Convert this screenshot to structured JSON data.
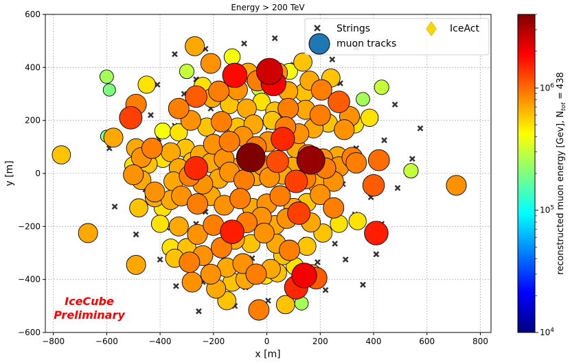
{
  "chart_data": {
    "type": "scatter",
    "title": "Energy > 200 TeV",
    "xlabel": "x [m]",
    "ylabel": "y [m]",
    "xlim": [
      -830,
      840
    ],
    "ylim": [
      -600,
      600
    ],
    "xticks": [
      -800,
      -600,
      -400,
      -200,
      0,
      200,
      400,
      600,
      800
    ],
    "yticks": [
      -600,
      -400,
      -200,
      0,
      200,
      400,
      600
    ],
    "grid": true,
    "legend": {
      "placement": "top-right",
      "entries": [
        {
          "name": "Strings",
          "marker": "x",
          "color": "#333333"
        },
        {
          "name": "muon tracks",
          "marker": "circle",
          "color": "#1f77b4"
        },
        {
          "name": "IceAct",
          "marker": "diamond",
          "color": "#ffd700"
        }
      ]
    },
    "colorbar": {
      "label": "reconstructed muon energy [Gev], N",
      "label_sub": "tot",
      "label_suffix": " = 438",
      "scale": "log",
      "range": [
        10000,
        4000000
      ],
      "tick_bases": [
        "10",
        "10",
        "10"
      ],
      "tick_exps": [
        "4",
        "5",
        "6"
      ],
      "tick_values": [
        10000,
        100000,
        1000000
      ]
    },
    "annotation": {
      "line1": "IceCube",
      "line2": "Preliminary",
      "color": "#ff0000"
    },
    "strings": [
      [
        -440,
        350
      ],
      [
        -345,
        450
      ],
      [
        -265,
        355
      ],
      [
        -230,
        470
      ],
      [
        -85,
        490
      ],
      [
        30,
        510
      ],
      [
        100,
        410
      ],
      [
        245,
        430
      ],
      [
        335,
        475
      ],
      [
        -410,
        335
      ],
      [
        -310,
        300
      ],
      [
        -210,
        245
      ],
      [
        -90,
        340
      ],
      [
        -30,
        310
      ],
      [
        60,
        260
      ],
      [
        160,
        295
      ],
      [
        275,
        340
      ],
      [
        360,
        195
      ],
      [
        -435,
        220
      ],
      [
        -345,
        180
      ],
      [
        -155,
        170
      ],
      [
        5,
        175
      ],
      [
        185,
        185
      ],
      [
        290,
        250
      ],
      [
        480,
        260
      ],
      [
        575,
        170
      ],
      [
        -590,
        95
      ],
      [
        -490,
        65
      ],
      [
        -405,
        130
      ],
      [
        -300,
        120
      ],
      [
        -185,
        100
      ],
      [
        -80,
        80
      ],
      [
        15,
        40
      ],
      [
        110,
        80
      ],
      [
        225,
        20
      ],
      [
        335,
        95
      ],
      [
        440,
        125
      ],
      [
        545,
        55
      ],
      [
        -520,
        -20
      ],
      [
        -455,
        -60
      ],
      [
        -330,
        -30
      ],
      [
        -225,
        -35
      ],
      [
        -95,
        -10
      ],
      [
        170,
        -30
      ],
      [
        285,
        -40
      ],
      [
        390,
        -90
      ],
      [
        490,
        -55
      ],
      [
        -570,
        -125
      ],
      [
        -440,
        -110
      ],
      [
        -345,
        -110
      ],
      [
        -230,
        -145
      ],
      [
        -40,
        -140
      ],
      [
        60,
        -110
      ],
      [
        150,
        -115
      ],
      [
        330,
        -155
      ],
      [
        430,
        -190
      ],
      [
        -490,
        -230
      ],
      [
        -375,
        -205
      ],
      [
        -265,
        -190
      ],
      [
        -150,
        -230
      ],
      [
        -60,
        -250
      ],
      [
        45,
        -240
      ],
      [
        145,
        -250
      ],
      [
        255,
        -265
      ],
      [
        390,
        -200
      ],
      [
        -400,
        -325
      ],
      [
        -300,
        -320
      ],
      [
        -160,
        -330
      ],
      [
        -55,
        -320
      ],
      [
        40,
        -360
      ],
      [
        190,
        -335
      ],
      [
        295,
        -325
      ],
      [
        410,
        -305
      ],
      [
        -340,
        -425
      ],
      [
        -240,
        -410
      ],
      [
        -130,
        -395
      ],
      [
        -80,
        -430
      ],
      [
        135,
        -415
      ],
      [
        220,
        -440
      ],
      [
        360,
        -420
      ],
      [
        -255,
        -520
      ],
      [
        -120,
        -500
      ],
      [
        5,
        -480
      ]
    ],
    "muon_tracks": [
      [
        -130,
        440,
        400000
      ],
      [
        -270,
        480,
        700000
      ],
      [
        -210,
        415,
        800000
      ],
      [
        -120,
        370,
        1800000
      ],
      [
        -70,
        380,
        700000
      ],
      [
        -35,
        350,
        900000
      ],
      [
        10,
        385,
        2500000
      ],
      [
        40,
        380,
        800000
      ],
      [
        85,
        385,
        400000
      ],
      [
        135,
        420,
        600000
      ],
      [
        160,
        350,
        700000
      ],
      [
        240,
        360,
        600000
      ],
      [
        -600,
        365,
        250000
      ],
      [
        -590,
        315,
        200000
      ],
      [
        -450,
        335,
        500000
      ],
      [
        -300,
        385,
        300000
      ],
      [
        -240,
        330,
        500000
      ],
      [
        -180,
        310,
        900000
      ],
      [
        -110,
        315,
        800000
      ],
      [
        -30,
        320,
        300000
      ],
      [
        25,
        340,
        2000000
      ],
      [
        80,
        310,
        700000
      ],
      [
        140,
        305,
        600000
      ],
      [
        205,
        315,
        900000
      ],
      [
        360,
        280,
        250000
      ],
      [
        430,
        325,
        300000
      ],
      [
        -510,
        210,
        1300000
      ],
      [
        -490,
        260,
        900000
      ],
      [
        -330,
        245,
        900000
      ],
      [
        -265,
        290,
        1100000
      ],
      [
        -205,
        285,
        700000
      ],
      [
        -140,
        260,
        600000
      ],
      [
        -75,
        245,
        700000
      ],
      [
        -20,
        270,
        500000
      ],
      [
        30,
        235,
        600000
      ],
      [
        80,
        245,
        900000
      ],
      [
        145,
        240,
        700000
      ],
      [
        200,
        220,
        900000
      ],
      [
        270,
        270,
        1100000
      ],
      [
        310,
        215,
        800000
      ],
      [
        330,
        185,
        500000
      ],
      [
        385,
        210,
        500000
      ],
      [
        -390,
        160,
        400000
      ],
      [
        -330,
        155,
        500000
      ],
      [
        -285,
        200,
        800000
      ],
      [
        -225,
        175,
        600000
      ],
      [
        -170,
        195,
        900000
      ],
      [
        -110,
        175,
        600000
      ],
      [
        -50,
        185,
        700000
      ],
      [
        20,
        200,
        600000
      ],
      [
        70,
        175,
        900000
      ],
      [
        120,
        150,
        800000
      ],
      [
        175,
        170,
        700000
      ],
      [
        230,
        190,
        600000
      ],
      [
        290,
        165,
        800000
      ],
      [
        -770,
        70,
        600000
      ],
      [
        -600,
        140,
        200000
      ],
      [
        -575,
        135,
        700000
      ],
      [
        -490,
        95,
        700000
      ],
      [
        -470,
        60,
        800000
      ],
      [
        -430,
        95,
        900000
      ],
      [
        -360,
        80,
        700000
      ],
      [
        -305,
        95,
        600000
      ],
      [
        -250,
        70,
        700000
      ],
      [
        -200,
        110,
        800000
      ],
      [
        -140,
        120,
        900000
      ],
      [
        -90,
        140,
        800000
      ],
      [
        -40,
        100,
        900000
      ],
      [
        5,
        120,
        800000
      ],
      [
        60,
        130,
        1500000
      ],
      [
        110,
        95,
        700000
      ],
      [
        155,
        70,
        900000
      ],
      [
        210,
        55,
        800000
      ],
      [
        265,
        65,
        700000
      ],
      [
        320,
        60,
        900000
      ],
      [
        335,
        40,
        900000
      ],
      [
        420,
        50,
        1000000
      ],
      [
        540,
        10,
        300000
      ],
      [
        -500,
        30,
        500000
      ],
      [
        -445,
        35,
        600000
      ],
      [
        -390,
        55,
        500000
      ],
      [
        -330,
        20,
        700000
      ],
      [
        -280,
        45,
        600000
      ],
      [
        -265,
        20,
        1500000
      ],
      [
        -210,
        40,
        700000
      ],
      [
        -160,
        55,
        800000
      ],
      [
        -120,
        20,
        700000
      ],
      [
        -60,
        60,
        4000000
      ],
      [
        -15,
        30,
        800000
      ],
      [
        40,
        45,
        1200000
      ],
      [
        95,
        25,
        700000
      ],
      [
        165,
        50,
        3500000
      ],
      [
        220,
        20,
        900000
      ],
      [
        270,
        25,
        800000
      ],
      [
        -500,
        -5,
        800000
      ],
      [
        -470,
        -25,
        700000
      ],
      [
        -420,
        -70,
        800000
      ],
      [
        -350,
        -30,
        700000
      ],
      [
        -290,
        -10,
        900000
      ],
      [
        -240,
        -40,
        800000
      ],
      [
        -180,
        -20,
        700000
      ],
      [
        -140,
        5,
        800000
      ],
      [
        -85,
        -25,
        900000
      ],
      [
        -40,
        -10,
        700000
      ],
      [
        10,
        -15,
        800000
      ],
      [
        60,
        -5,
        700000
      ],
      [
        110,
        -30,
        1300000
      ],
      [
        145,
        -20,
        900000
      ],
      [
        190,
        -40,
        700000
      ],
      [
        250,
        -30,
        800000
      ],
      [
        400,
        -45,
        1100000
      ],
      [
        710,
        -45,
        800000
      ],
      [
        -480,
        -130,
        600000
      ],
      [
        -420,
        -90,
        700000
      ],
      [
        -390,
        -130,
        500000
      ],
      [
        -360,
        -100,
        700000
      ],
      [
        -320,
        -85,
        800000
      ],
      [
        -260,
        -115,
        900000
      ],
      [
        -210,
        -85,
        700000
      ],
      [
        -160,
        -120,
        800000
      ],
      [
        -100,
        -95,
        900000
      ],
      [
        -55,
        -130,
        700000
      ],
      [
        0,
        -115,
        800000
      ],
      [
        50,
        -85,
        900000
      ],
      [
        100,
        -130,
        700000
      ],
      [
        150,
        -110,
        600000
      ],
      [
        200,
        -80,
        800000
      ],
      [
        250,
        -130,
        900000
      ],
      [
        -670,
        -225,
        700000
      ],
      [
        -400,
        -190,
        500000
      ],
      [
        -330,
        -200,
        700000
      ],
      [
        -260,
        -230,
        800000
      ],
      [
        -200,
        -195,
        900000
      ],
      [
        -130,
        -220,
        1600000
      ],
      [
        -75,
        -185,
        900000
      ],
      [
        -20,
        -165,
        800000
      ],
      [
        30,
        -195,
        700000
      ],
      [
        75,
        -170,
        800000
      ],
      [
        120,
        -150,
        1300000
      ],
      [
        165,
        -185,
        700000
      ],
      [
        210,
        -225,
        600000
      ],
      [
        270,
        -190,
        500000
      ],
      [
        340,
        -180,
        500000
      ],
      [
        410,
        -225,
        1600000
      ],
      [
        -360,
        -280,
        500000
      ],
      [
        -300,
        -280,
        600000
      ],
      [
        -240,
        -310,
        800000
      ],
      [
        -170,
        -280,
        900000
      ],
      [
        -120,
        -250,
        700000
      ],
      [
        -60,
        -265,
        600000
      ],
      [
        -10,
        -225,
        800000
      ],
      [
        35,
        -265,
        700000
      ],
      [
        85,
        -290,
        900000
      ],
      [
        150,
        -275,
        600000
      ],
      [
        -490,
        -345,
        700000
      ],
      [
        -345,
        -320,
        600000
      ],
      [
        -290,
        -335,
        900000
      ],
      [
        -210,
        -380,
        800000
      ],
      [
        -150,
        -355,
        700000
      ],
      [
        -90,
        -340,
        800000
      ],
      [
        -40,
        -380,
        900000
      ],
      [
        15,
        -360,
        700000
      ],
      [
        60,
        -310,
        600000
      ],
      [
        105,
        -350,
        500000
      ],
      [
        170,
        -380,
        700000
      ],
      [
        -280,
        -410,
        800000
      ],
      [
        -190,
        -435,
        700000
      ],
      [
        -130,
        -410,
        600000
      ],
      [
        -80,
        -400,
        700000
      ],
      [
        -5,
        -385,
        500000
      ],
      [
        40,
        -375,
        600000
      ],
      [
        110,
        -430,
        1500000
      ],
      [
        140,
        -385,
        2000000
      ],
      [
        185,
        -395,
        1100000
      ],
      [
        -150,
        -480,
        600000
      ],
      [
        -30,
        -515,
        900000
      ],
      [
        70,
        -495,
        600000
      ],
      [
        130,
        -490,
        250000
      ]
    ]
  }
}
